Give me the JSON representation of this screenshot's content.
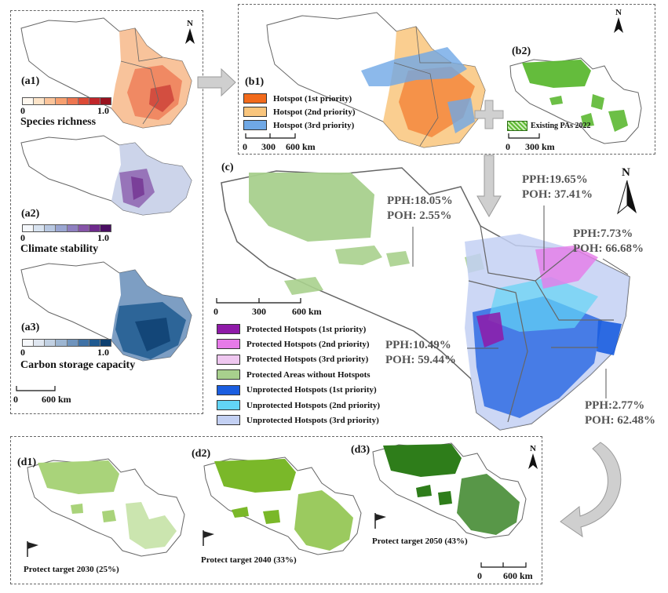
{
  "panelA": {
    "a1": {
      "label": "(a1)",
      "title": "Species richness",
      "min": "0",
      "max": "1.0",
      "colors": [
        "#fff8ef",
        "#fde4c8",
        "#fbc49a",
        "#f7a070",
        "#ee7650",
        "#dc4a36",
        "#c0262a",
        "#98121e"
      ]
    },
    "a2": {
      "label": "(a2)",
      "title": "Climate stability",
      "min": "0",
      "max": "1.0",
      "colors": [
        "#f4f7fb",
        "#d8e3f0",
        "#b8c8e2",
        "#9aa6d2",
        "#8e7fc0",
        "#8654a8",
        "#6e2a8c",
        "#4b0f63"
      ]
    },
    "a3": {
      "label": "(a3)",
      "title": "Carbon storage capacity",
      "min": "0",
      "max": "1.0",
      "colors": [
        "#f6f8fb",
        "#dfe6f0",
        "#c1d0e2",
        "#9db6d2",
        "#6f94bd",
        "#3f72a6",
        "#1f5a91",
        "#0c3f70"
      ]
    },
    "scale": {
      "zero": "0",
      "value": "600 km"
    }
  },
  "panelB": {
    "b1": {
      "label": "(b1)",
      "legend": [
        {
          "text": "Hotspot (1st priority)",
          "color": "#f26a1b"
        },
        {
          "text": "Hotspot (2nd priority)",
          "color": "#f9c57c"
        },
        {
          "text": "Hotspot (3rd priority)",
          "color": "#6fa8e6"
        }
      ],
      "scale": {
        "a": "0",
        "b": "300",
        "c": "600 km"
      }
    },
    "b2": {
      "label": "(b2)",
      "legend": "Existing PAs 2022",
      "color": "#5cb832",
      "scale": {
        "a": "0",
        "b": "300 km"
      }
    },
    "north": "N"
  },
  "panelC": {
    "label": "(c)",
    "north": "N",
    "scale": {
      "a": "0",
      "b": "300",
      "c": "600 km"
    },
    "legend": [
      {
        "text": "Protected Hotspots (1st priority)",
        "color": "#8f1aa8"
      },
      {
        "text": "Protected Hotspots (2nd priority)",
        "color": "#e67ae8"
      },
      {
        "text": "Protected Hotspots (3rd priority)",
        "color": "#efc7f0"
      },
      {
        "text": "Protected Areas without Hotspots",
        "color": "#a8d08d"
      },
      {
        "text": "Unprotected Hotspots (1st priority)",
        "color": "#1b5ee0"
      },
      {
        "text": "Unprotected Hotspots (2nd priority)",
        "color": "#62d4f5"
      },
      {
        "text": "Unprotected Hotspots (3rd priority)",
        "color": "#c3d0f3"
      }
    ],
    "stats": [
      {
        "pph": "PPH:18.05%",
        "poh": "POH: 2.55%"
      },
      {
        "pph": "PPH:19.65%",
        "poh": "POH: 37.41%"
      },
      {
        "pph": "PPH:7.73%",
        "poh": "POH: 66.68%"
      },
      {
        "pph": "PPH:10.49%",
        "poh": "POH: 59.44%"
      },
      {
        "pph": "PPH:2.77%",
        "poh": "POH: 62.48%"
      }
    ]
  },
  "panelD": {
    "d1": {
      "label": "(d1)",
      "target": "Protect target 2030 (25%)",
      "color": "#a9d37a"
    },
    "d2": {
      "label": "(d2)",
      "target": "Protect target 2040 (33%)",
      "color": "#7ab829"
    },
    "d3": {
      "label": "(d3)",
      "target": "Protect target 2050 (43%)",
      "color": "#2e7d1a"
    },
    "scale": {
      "a": "0",
      "b": "600 km"
    },
    "north": "N"
  }
}
